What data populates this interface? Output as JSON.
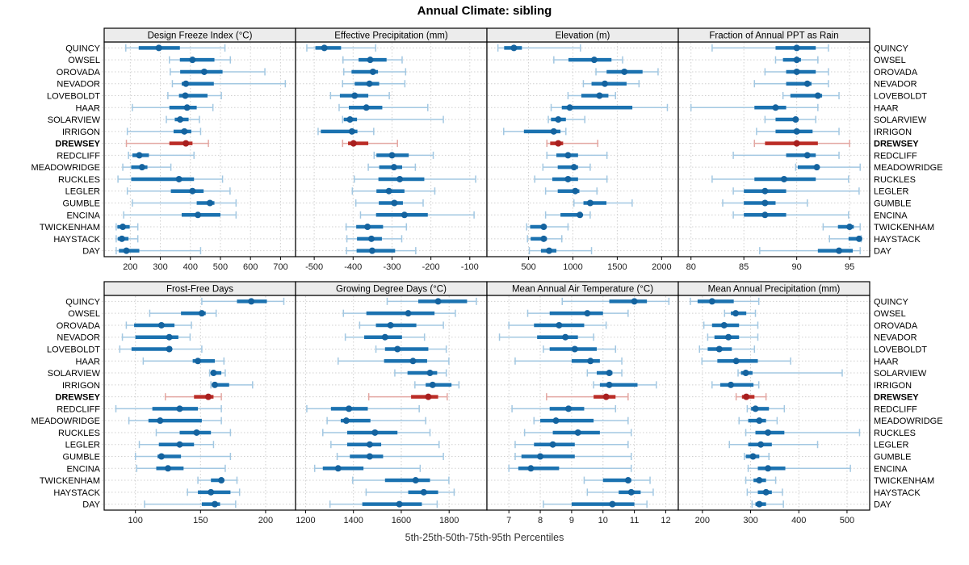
{
  "chart_data": {
    "type": "trellis-dotplot",
    "title": "Annual Climate: sibling",
    "xlabel": "5th-25th-50th-75th-95th Percentiles",
    "percentiles": [
      5,
      25,
      50,
      75,
      95
    ],
    "legend_position": "none",
    "grid": "dotted",
    "stations": [
      "QUINCY",
      "OWSEL",
      "OROVADA",
      "NEVADOR",
      "LOVEBOLDT",
      "HAAR",
      "SOLARVIEW",
      "IRRIGON",
      "DREWSEY",
      "REDCLIFF",
      "MEADOWRIDGE",
      "RUCKLES",
      "LEGLER",
      "GUMBLE",
      "ENCINA",
      "TWICKENHAM",
      "HAYSTACK",
      "DAY"
    ],
    "highlight_station": "DREWSEY",
    "colors": {
      "blue_thick": "#1b72b0",
      "blue_light": "#a3c8e2",
      "blue_dot": "#14639f",
      "red_thick": "#bb2d27",
      "red_light": "#e3a7a2",
      "red_dot": "#a81f1f",
      "grid": "#d0d0d0",
      "strip_bg": "#ececec",
      "border": "#000000",
      "tick_text": "#1c1c1c",
      "label_text": "#000000"
    },
    "panels": [
      {
        "title": "Design Freeze Index (°C)",
        "row": 0,
        "col": 0,
        "xlim": [
          113,
          750
        ],
        "ticks": [
          200,
          300,
          400,
          500,
          600,
          700
        ],
        "series": [
          [
            185,
            228,
            295,
            365,
            515
          ],
          [
            330,
            365,
            407,
            480,
            533
          ],
          [
            333,
            366,
            446,
            507,
            648
          ],
          [
            340,
            371,
            385,
            478,
            716
          ],
          [
            325,
            362,
            383,
            457,
            503
          ],
          [
            207,
            330,
            389,
            421,
            475
          ],
          [
            320,
            348,
            366,
            394,
            430
          ],
          [
            190,
            344,
            380,
            403,
            434
          ],
          [
            187,
            330,
            385,
            407,
            460
          ],
          [
            194,
            207,
            230,
            262,
            412
          ],
          [
            175,
            203,
            239,
            257,
            335
          ],
          [
            159,
            203,
            362,
            412,
            507
          ],
          [
            190,
            335,
            407,
            444,
            532
          ],
          [
            207,
            421,
            465,
            480,
            552
          ],
          [
            178,
            371,
            425,
            500,
            552
          ],
          [
            153,
            157,
            175,
            198,
            225
          ],
          [
            153,
            158,
            172,
            194,
            225
          ],
          [
            153,
            162,
            187,
            230,
            434
          ]
        ]
      },
      {
        "title": "Effective Precipitation (mm)",
        "row": 0,
        "col": 1,
        "xlim": [
          -548,
          -56
        ],
        "ticks": [
          -500,
          -400,
          -300,
          -200,
          -100
        ],
        "series": [
          [
            -519,
            -497,
            -474,
            -431,
            -342
          ],
          [
            -426,
            -386,
            -356,
            -314,
            -274
          ],
          [
            -424,
            -404,
            -349,
            -336,
            -265
          ],
          [
            -427,
            -396,
            -358,
            -333,
            -267
          ],
          [
            -458,
            -434,
            -396,
            -361,
            -307
          ],
          [
            -436,
            -411,
            -366,
            -325,
            -208
          ],
          [
            -427,
            -424,
            -408,
            -390,
            -168
          ],
          [
            -490,
            -483,
            -403,
            -389,
            -347
          ],
          [
            -427,
            -413,
            -399,
            -361,
            -286
          ],
          [
            -346,
            -340,
            -300,
            -257,
            -194
          ],
          [
            -361,
            -333,
            -295,
            -274,
            -240
          ],
          [
            -397,
            -335,
            -280,
            -217,
            -85
          ],
          [
            -402,
            -340,
            -308,
            -268,
            -190
          ],
          [
            -393,
            -334,
            -294,
            -272,
            -220
          ],
          [
            -381,
            -341,
            -268,
            -208,
            -89
          ],
          [
            -418,
            -392,
            -363,
            -323,
            -263
          ],
          [
            -416,
            -390,
            -353,
            -326,
            -275
          ],
          [
            -417,
            -391,
            -351,
            -292,
            -239
          ]
        ]
      },
      {
        "title": "Elevation (m)",
        "row": 0,
        "col": 2,
        "xlim": [
          31,
          2188
        ],
        "ticks": [
          500,
          1000,
          1500,
          2000
        ],
        "series": [
          [
            155,
            225,
            335,
            425,
            1085
          ],
          [
            785,
            950,
            1240,
            1435,
            1560
          ],
          [
            1260,
            1380,
            1580,
            1785,
            1960
          ],
          [
            1118,
            1210,
            1360,
            1605,
            1745
          ],
          [
            945,
            1095,
            1300,
            1400,
            1480
          ],
          [
            755,
            875,
            965,
            1670,
            2065
          ],
          [
            723,
            753,
            835,
            921,
            1134
          ],
          [
            220,
            448,
            784,
            860,
            921
          ],
          [
            707,
            744,
            835,
            890,
            1280
          ],
          [
            707,
            814,
            945,
            1058,
            1384
          ],
          [
            662,
            829,
            1012,
            1058,
            1195
          ],
          [
            570,
            768,
            945,
            1058,
            1384
          ],
          [
            692,
            829,
            1027,
            1073,
            1271
          ],
          [
            1012,
            1119,
            1195,
            1378,
            1668
          ],
          [
            692,
            860,
            1079,
            1104,
            1195
          ],
          [
            479,
            518,
            671,
            701,
            945
          ],
          [
            488,
            524,
            671,
            707,
            875
          ],
          [
            509,
            640,
            732,
            814,
            1210
          ]
        ]
      },
      {
        "title": "Fraction of Annual PPT as Rain",
        "row": 0,
        "col": 3,
        "xlim": [
          78.8,
          96.9
        ],
        "ticks": [
          80,
          85,
          90,
          95
        ],
        "series": [
          [
            82,
            88,
            90,
            91.8,
            93
          ],
          [
            88,
            88.7,
            90,
            90.4,
            92
          ],
          [
            87,
            89,
            90,
            91.8,
            93
          ],
          [
            86,
            89,
            91,
            91.4,
            93
          ],
          [
            88.7,
            89.4,
            92,
            92.4,
            94
          ],
          [
            80,
            86,
            88,
            89,
            92
          ],
          [
            87,
            88,
            89.9,
            90,
            91.8
          ],
          [
            86.2,
            88,
            90,
            91.5,
            94
          ],
          [
            86,
            87,
            90,
            92,
            95
          ],
          [
            84,
            89,
            91,
            91.8,
            94
          ],
          [
            89.9,
            90.1,
            91.9,
            92,
            96
          ],
          [
            82,
            86,
            88.8,
            91.8,
            94.9
          ],
          [
            84,
            85,
            87,
            89,
            95.9
          ],
          [
            83,
            85,
            87,
            88,
            91
          ],
          [
            84,
            85,
            87,
            89,
            94.9
          ],
          [
            92.5,
            93.9,
            95,
            95.4,
            96
          ],
          [
            93.1,
            94.9,
            95.9,
            96,
            96.1
          ],
          [
            86.5,
            92,
            94,
            95.3,
            96
          ]
        ]
      },
      {
        "title": "Frost-Free Days",
        "row": 1,
        "col": 0,
        "xlim": [
          76,
          223
        ],
        "ticks": [
          100,
          150,
          200
        ],
        "series": [
          [
            151,
            178,
            189,
            201,
            214
          ],
          [
            111,
            135,
            151,
            154,
            162
          ],
          [
            93,
            99,
            120,
            130,
            143
          ],
          [
            90,
            100,
            126,
            133,
            142
          ],
          [
            88,
            97,
            126,
            128,
            151
          ],
          [
            106,
            144,
            148,
            161,
            168
          ],
          [
            157,
            158,
            160,
            166,
            169
          ],
          [
            158,
            159,
            161,
            172,
            190
          ],
          [
            123,
            145,
            156,
            160,
            166
          ],
          [
            85,
            113,
            134,
            148,
            166
          ],
          [
            95,
            110,
            119,
            151,
            166
          ],
          [
            116,
            134,
            147,
            158,
            173
          ],
          [
            103,
            118,
            134,
            145,
            160
          ],
          [
            100,
            117,
            120,
            135,
            173
          ],
          [
            101,
            116,
            125,
            137,
            169
          ],
          [
            148,
            158,
            166,
            168,
            178
          ],
          [
            140,
            148,
            158,
            173,
            180
          ],
          [
            107,
            151,
            161,
            165,
            177
          ]
        ]
      },
      {
        "title": "Growing Degree Days (°C)",
        "row": 1,
        "col": 1,
        "xlim": [
          1158,
          1958
        ],
        "ticks": [
          1200,
          1400,
          1600,
          1800
        ],
        "series": [
          [
            1541,
            1671,
            1754,
            1875,
            1914
          ],
          [
            1358,
            1454,
            1629,
            1739,
            1826
          ],
          [
            1426,
            1494,
            1555,
            1663,
            1776
          ],
          [
            1366,
            1445,
            1532,
            1603,
            1697
          ],
          [
            1494,
            1532,
            1584,
            1713,
            1788
          ],
          [
            1336,
            1528,
            1649,
            1708,
            1799
          ],
          [
            1573,
            1626,
            1720,
            1750,
            1788
          ],
          [
            1657,
            1702,
            1731,
            1810,
            1841
          ],
          [
            1464,
            1641,
            1713,
            1754,
            1792
          ],
          [
            1205,
            1306,
            1381,
            1460,
            1675
          ],
          [
            1290,
            1347,
            1370,
            1471,
            1702
          ],
          [
            1272,
            1374,
            1490,
            1584,
            1720
          ],
          [
            1306,
            1374,
            1468,
            1516,
            1758
          ],
          [
            1332,
            1385,
            1468,
            1524,
            1776
          ],
          [
            1238,
            1272,
            1336,
            1442,
            1679
          ],
          [
            1397,
            1532,
            1660,
            1720,
            1799
          ],
          [
            1453,
            1629,
            1694,
            1754,
            1821
          ],
          [
            1302,
            1437,
            1592,
            1686,
            1750
          ]
        ]
      },
      {
        "title": "Mean Annual Air Temperature (°C)",
        "row": 1,
        "col": 2,
        "xlim": [
          6.3,
          12.4
        ],
        "ticks": [
          7,
          8,
          9,
          10,
          11,
          12
        ],
        "series": [
          [
            8.7,
            10.2,
            11.0,
            11.4,
            12.1
          ],
          [
            7.6,
            8.3,
            9.5,
            10.0,
            10.8
          ],
          [
            7.0,
            7.8,
            8.6,
            9.4,
            10.1
          ],
          [
            6.7,
            7.9,
            8.8,
            9.2,
            9.7
          ],
          [
            8.1,
            8.3,
            9.1,
            9.8,
            10.4
          ],
          [
            7.2,
            9.0,
            9.6,
            9.9,
            10.6
          ],
          [
            9.5,
            9.8,
            10.2,
            10.3,
            10.6
          ],
          [
            9.7,
            9.9,
            10.2,
            11.1,
            11.7
          ],
          [
            8.2,
            9.7,
            10.1,
            10.4,
            10.8
          ],
          [
            7.1,
            8.3,
            8.9,
            9.4,
            10.4
          ],
          [
            7.8,
            8.0,
            8.5,
            9.7,
            10.8
          ],
          [
            7.5,
            8.4,
            9.2,
            9.9,
            10.9
          ],
          [
            7.2,
            7.8,
            8.4,
            9.1,
            10.8
          ],
          [
            7.2,
            7.4,
            8.0,
            9.1,
            10.9
          ],
          [
            7.0,
            7.3,
            7.7,
            8.6,
            10.9
          ],
          [
            9.4,
            10.0,
            10.8,
            10.9,
            11.5
          ],
          [
            9.5,
            10.5,
            10.9,
            11.2,
            11.6
          ],
          [
            8.1,
            9.0,
            10.3,
            11.0,
            11.4
          ]
        ]
      },
      {
        "title": "Mean Annual Precipitation (mm)",
        "row": 1,
        "col": 3,
        "xlim": [
          150,
          547
        ],
        "ticks": [
          200,
          300,
          400,
          500
        ],
        "series": [
          [
            175,
            190,
            220,
            265,
            317
          ],
          [
            246,
            259,
            269,
            291,
            310
          ],
          [
            203,
            220,
            245,
            276,
            315
          ],
          [
            211,
            225,
            254,
            276,
            315
          ],
          [
            194,
            211,
            235,
            261,
            308
          ],
          [
            199,
            231,
            270,
            315,
            383
          ],
          [
            274,
            280,
            290,
            304,
            490
          ],
          [
            220,
            237,
            259,
            306,
            317
          ],
          [
            270,
            282,
            291,
            308,
            332
          ],
          [
            293,
            301,
            310,
            338,
            370
          ],
          [
            276,
            295,
            318,
            332,
            355
          ],
          [
            290,
            310,
            336,
            370,
            526
          ],
          [
            256,
            295,
            321,
            344,
            439
          ],
          [
            287,
            290,
            305,
            318,
            338
          ],
          [
            295,
            315,
            336,
            372,
            507
          ],
          [
            290,
            306,
            318,
            332,
            352
          ],
          [
            293,
            315,
            332,
            344,
            366
          ],
          [
            303,
            310,
            318,
            332,
            368
          ]
        ]
      }
    ]
  }
}
